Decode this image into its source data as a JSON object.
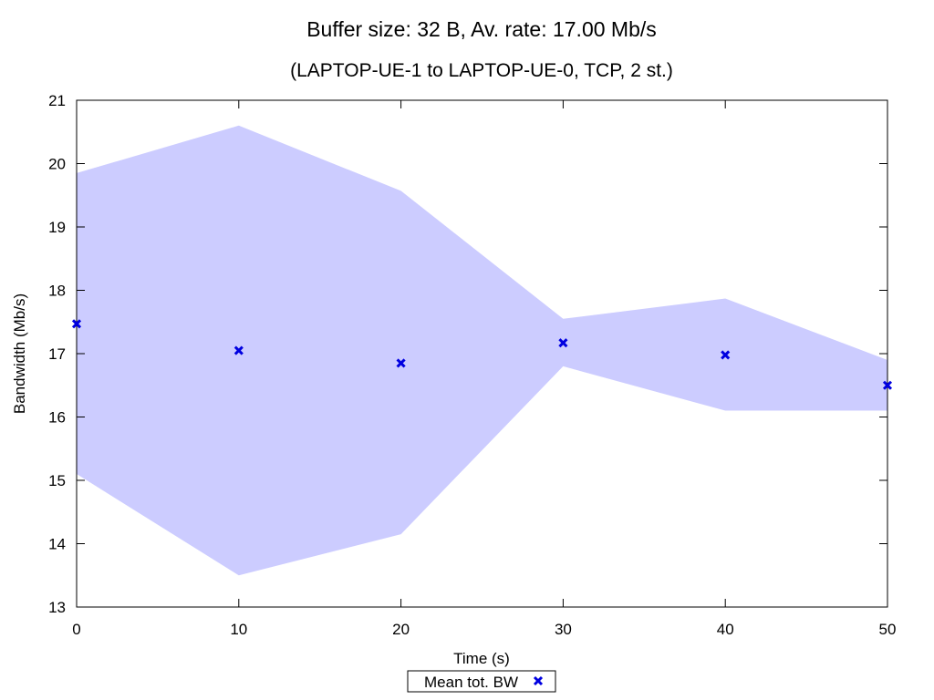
{
  "chart_data": {
    "type": "scatter",
    "title": "Buffer size: 32 B, Av. rate: 17.00 Mb/s",
    "subtitle": "(LAPTOP-UE-1 to LAPTOP-UE-0, TCP, 2 st.)",
    "xlabel": "Time (s)",
    "ylabel": "Bandwidth (Mb/s)",
    "xlim": [
      0,
      50
    ],
    "ylim": [
      13,
      21
    ],
    "xticks": [
      0,
      10,
      20,
      30,
      40,
      50
    ],
    "yticks": [
      13,
      14,
      15,
      16,
      17,
      18,
      19,
      20,
      21
    ],
    "grid": false,
    "legend_position": "bottom-center",
    "band": {
      "color": "#ccccff",
      "x": [
        0,
        10,
        20,
        30,
        40,
        50
      ],
      "upper": [
        19.85,
        20.6,
        19.57,
        17.55,
        17.87,
        16.9
      ],
      "lower": [
        15.1,
        13.5,
        14.15,
        16.8,
        16.1,
        16.1
      ]
    },
    "series": [
      {
        "name": "Mean tot. BW",
        "color": "#0000e0",
        "marker": "x",
        "x": [
          0,
          10,
          20,
          30,
          40,
          50
        ],
        "y": [
          17.47,
          17.05,
          16.85,
          17.17,
          16.98,
          16.5
        ]
      }
    ]
  }
}
